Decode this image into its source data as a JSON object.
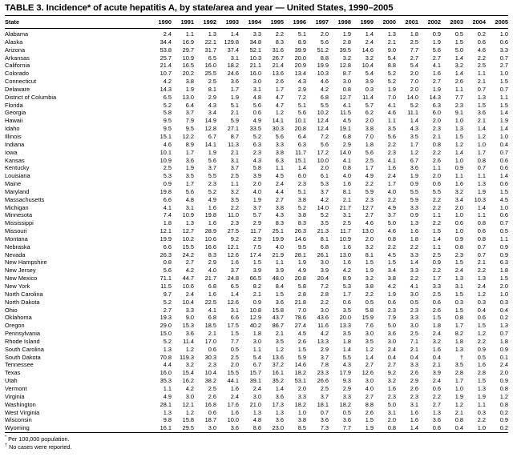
{
  "title": "TABLE 3. Incidence* of acute hepatitis A, by state/area and year — United States, 1990–2005",
  "table": {
    "columns": [
      "State",
      "1990",
      "1991",
      "1992",
      "1993",
      "1994",
      "1995",
      "1996",
      "1997",
      "1998",
      "1999",
      "2000",
      "2001",
      "2002",
      "2003",
      "2004",
      "2005"
    ],
    "rows": [
      {
        "state": "Alabama",
        "values": [
          "2.4",
          "1.1",
          "1.3",
          "1.4",
          "3.3",
          "2.2",
          "5.1",
          "2.0",
          "1.9",
          "1.4",
          "1.3",
          "1.8",
          "0.9",
          "0.5",
          "0.2",
          "1.0"
        ]
      },
      {
        "state": "Alaska",
        "values": [
          "34.4",
          "16.9",
          "22.1",
          "129.8",
          "34.8",
          "8.3",
          "8.9",
          "5.6",
          "2.8",
          "2.4",
          "2.1",
          "2.5",
          "1.9",
          "1.5",
          "0.6",
          "0.6"
        ]
      },
      {
        "state": "Arizona",
        "values": [
          "53.8",
          "29.7",
          "31.7",
          "37.4",
          "52.1",
          "31.6",
          "39.9",
          "51.2",
          "39.5",
          "14.6",
          "9.0",
          "7.7",
          "5.6",
          "5.0",
          "4.6",
          "3.3"
        ]
      },
      {
        "state": "Arkansas",
        "values": [
          "25.7",
          "10.9",
          "6.5",
          "3.1",
          "10.3",
          "26.7",
          "20.0",
          "8.8",
          "3.2",
          "3.2",
          "5.4",
          "2.7",
          "2.7",
          "1.4",
          "2.2",
          "0.7"
        ]
      },
      {
        "state": "California",
        "values": [
          "21.4",
          "16.5",
          "16.0",
          "18.2",
          "21.1",
          "21.4",
          "20.9",
          "19.9",
          "12.8",
          "10.4",
          "8.8",
          "5.4",
          "4.1",
          "3.2",
          "2.5",
          "2.7"
        ]
      },
      {
        "state": "Colorado",
        "values": [
          "10.7",
          "20.2",
          "25.5",
          "24.6",
          "16.0",
          "13.6",
          "13.4",
          "10.3",
          "8.7",
          "5.4",
          "5.2",
          "2.0",
          "1.6",
          "1.4",
          "1.1",
          "1.0"
        ]
      },
      {
        "state": "Connecticut",
        "values": [
          "4.2",
          "3.8",
          "2.5",
          "3.6",
          "3.0",
          "2.6",
          "4.3",
          "4.6",
          "3.0",
          "3.9",
          "5.2",
          "7.0",
          "2.7",
          "2.6",
          "2.1",
          "1.5"
        ]
      },
      {
        "state": "Delaware",
        "values": [
          "14.3",
          "1.9",
          "8.1",
          "1.7",
          "3.1",
          "1.7",
          "2.9",
          "4.2",
          "0.8",
          "0.3",
          "1.9",
          "2.0",
          "1.9",
          "1.1",
          "0.7",
          "0.7"
        ]
      },
      {
        "state": "District of Columbia",
        "values": [
          "6.5",
          "13.0",
          "2.9",
          "1.9",
          "4.8",
          "4.7",
          "7.2",
          "6.8",
          "12.7",
          "11.4",
          "7.0",
          "14.0",
          "14.3",
          "7.7",
          "1.3",
          "1.1"
        ]
      },
      {
        "state": "Florida",
        "values": [
          "5.2",
          "6.4",
          "4.3",
          "5.1",
          "5.6",
          "4.7",
          "5.1",
          "5.5",
          "4.1",
          "5.7",
          "4.1",
          "5.2",
          "6.3",
          "2.3",
          "1.5",
          "1.5"
        ]
      },
      {
        "state": "Georgia",
        "values": [
          "5.8",
          "3.7",
          "3.4",
          "2.1",
          "0.6",
          "1.2",
          "5.6",
          "10.2",
          "11.5",
          "6.2",
          "4.6",
          "11.1",
          "6.0",
          "9.1",
          "3.6",
          "1.4"
        ]
      },
      {
        "state": "Hawaii",
        "values": [
          "9.5",
          "7.9",
          "14.9",
          "5.9",
          "4.9",
          "14.1",
          "10.1",
          "12.4",
          "4.5",
          "2.0",
          "1.1",
          "1.4",
          "2.0",
          "1.0",
          "2.1",
          "1.9"
        ]
      },
      {
        "state": "Idaho",
        "values": [
          "9.5",
          "9.5",
          "12.8",
          "27.1",
          "33.5",
          "30.3",
          "20.8",
          "12.4",
          "19.1",
          "3.8",
          "3.5",
          "4.3",
          "2.3",
          "1.3",
          "1.4",
          "1.4"
        ]
      },
      {
        "state": "Illinois",
        "values": [
          "15.1",
          "12.2",
          "6.7",
          "8.7",
          "5.2",
          "5.6",
          "6.4",
          "7.2",
          "6.8",
          "7.0",
          "5.6",
          "3.5",
          "2.1",
          "1.5",
          "1.2",
          "1.0"
        ]
      },
      {
        "state": "Indiana",
        "values": [
          "4.6",
          "8.9",
          "14.1",
          "11.3",
          "6.3",
          "3.3",
          "6.3",
          "5.6",
          "2.9",
          "1.8",
          "2.2",
          "1.7",
          "0.8",
          "1.2",
          "1.0",
          "0.4"
        ]
      },
      {
        "state": "Iowa",
        "values": [
          "10.1",
          "1.7",
          "1.9",
          "2.1",
          "2.3",
          "3.8",
          "11.7",
          "17.2",
          "14.0",
          "5.6",
          "2.3",
          "1.2",
          "2.2",
          "1.4",
          "1.7",
          "0.7"
        ]
      },
      {
        "state": "Kansas",
        "values": [
          "10.9",
          "3.6",
          "5.6",
          "3.1",
          "4.3",
          "6.3",
          "15.1",
          "10.0",
          "4.1",
          "2.5",
          "4.1",
          "6.7",
          "2.6",
          "1.0",
          "0.8",
          "0.6"
        ]
      },
      {
        "state": "Kentucky",
        "values": [
          "2.5",
          "1.9",
          "3.7",
          "3.7",
          "5.8",
          "1.1",
          "1.4",
          "2.0",
          "0.8",
          "1.7",
          "1.6",
          "3.6",
          "1.1",
          "0.9",
          "0.7",
          "0.6"
        ]
      },
      {
        "state": "Louisiana",
        "values": [
          "5.3",
          "3.5",
          "5.5",
          "2.5",
          "3.9",
          "4.5",
          "6.0",
          "6.1",
          "4.0",
          "4.9",
          "2.4",
          "1.9",
          "2.0",
          "1.1",
          "1.1",
          "1.4"
        ]
      },
      {
        "state": "Maine",
        "values": [
          "0.9",
          "1.7",
          "2.3",
          "1.1",
          "2.0",
          "2.4",
          "2.3",
          "5.3",
          "1.6",
          "2.2",
          "1.7",
          "0.9",
          "0.6",
          "1.6",
          "1.3",
          "0.6"
        ]
      },
      {
        "state": "Maryland",
        "values": [
          "19.8",
          "5.6",
          "5.2",
          "3.2",
          "4.0",
          "4.4",
          "5.1",
          "3.7",
          "8.1",
          "5.9",
          "4.0",
          "5.5",
          "5.5",
          "3.2",
          "1.9",
          "1.5"
        ]
      },
      {
        "state": "Massachusetts",
        "values": [
          "6.6",
          "4.8",
          "4.9",
          "3.5",
          "1.9",
          "2.7",
          "3.8",
          "4.2",
          "2.1",
          "2.3",
          "2.2",
          "5.9",
          "2.2",
          "3.4",
          "10.3",
          "4.5"
        ]
      },
      {
        "state": "Michigan",
        "values": [
          "4.1",
          "3.1",
          "1.6",
          "2.2",
          "3.7",
          "3.8",
          "5.2",
          "14.0",
          "21.7",
          "12.7",
          "4.9",
          "3.3",
          "2.2",
          "2.0",
          "1.4",
          "1.0"
        ]
      },
      {
        "state": "Minnesota",
        "values": [
          "7.4",
          "10.9",
          "19.8",
          "11.0",
          "5.7",
          "4.3",
          "3.8",
          "5.2",
          "3.1",
          "2.7",
          "3.7",
          "0.9",
          "1.1",
          "1.0",
          "1.1",
          "0.6"
        ]
      },
      {
        "state": "Mississippi",
        "values": [
          "1.8",
          "1.3",
          "1.6",
          "2.3",
          "2.9",
          "8.3",
          "8.3",
          "3.5",
          "2.5",
          "4.6",
          "5.0",
          "1.3",
          "2.2",
          "0.6",
          "0.8",
          "0.7"
        ]
      },
      {
        "state": "Missouri",
        "values": [
          "12.1",
          "12.7",
          "28.9",
          "27.5",
          "11.7",
          "25.1",
          "26.3",
          "21.3",
          "11.7",
          "13.0",
          "4.6",
          "1.6",
          "1.5",
          "1.0",
          "0.6",
          "0.5"
        ]
      },
      {
        "state": "Montana",
        "values": [
          "19.9",
          "10.2",
          "10.6",
          "9.2",
          "2.9",
          "19.9",
          "14.6",
          "8.1",
          "10.9",
          "2.0",
          "0.8",
          "1.8",
          "1.4",
          "0.9",
          "0.8",
          "1.1"
        ]
      },
      {
        "state": "Nebraska",
        "values": [
          "6.6",
          "15.5",
          "16.6",
          "12.1",
          "7.5",
          "4.0",
          "9.5",
          "6.8",
          "1.6",
          "3.2",
          "2.2",
          "2.2",
          "1.1",
          "0.8",
          "0.7",
          "0.9"
        ]
      },
      {
        "state": "Nevada",
        "values": [
          "26.3",
          "24.2",
          "8.3",
          "12.6",
          "17.4",
          "21.9",
          "28.1",
          "26.1",
          "13.0",
          "8.1",
          "4.5",
          "3.3",
          "2.5",
          "2.3",
          "0.7",
          "0.9"
        ]
      },
      {
        "state": "New Hampshire",
        "values": [
          "0.8",
          "2.7",
          "2.9",
          "1.6",
          "1.5",
          "1.1",
          "1.9",
          "3.0",
          "1.6",
          "1.5",
          "1.5",
          "1.4",
          "0.9",
          "1.5",
          "2.1",
          "6.3"
        ]
      },
      {
        "state": "New Jersey",
        "values": [
          "5.6",
          "4.2",
          "4.0",
          "3.7",
          "3.9",
          "3.9",
          "4.9",
          "3.9",
          "4.2",
          "1.9",
          "3.4",
          "3.3",
          "2.2",
          "2.4",
          "2.2",
          "1.8"
        ]
      },
      {
        "state": "New Mexico",
        "values": [
          "71.1",
          "44.7",
          "21.7",
          "24.8",
          "66.5",
          "48.0",
          "20.8",
          "20.4",
          "8.9",
          "3.2",
          "3.8",
          "2.2",
          "1.7",
          "1.3",
          "1.3",
          "1.5"
        ]
      },
      {
        "state": "New York",
        "values": [
          "11.5",
          "10.6",
          "6.8",
          "6.5",
          "8.2",
          "8.4",
          "5.8",
          "7.2",
          "5.3",
          "3.8",
          "4.2",
          "4.1",
          "3.3",
          "3.1",
          "2.4",
          "2.0"
        ]
      },
      {
        "state": "North Carolina",
        "values": [
          "9.7",
          "2.4",
          "1.6",
          "1.4",
          "2.1",
          "1.5",
          "2.8",
          "2.8",
          "1.7",
          "2.2",
          "1.9",
          "3.0",
          "2.5",
          "1.5",
          "1.2",
          "1.0"
        ]
      },
      {
        "state": "North Dakota",
        "values": [
          "5.2",
          "10.4",
          "22.5",
          "12.6",
          "0.9",
          "3.6",
          "21.8",
          "2.2",
          "0.6",
          "0.5",
          "0.6",
          "0.5",
          "0.6",
          "0.3",
          "0.3",
          "0.3"
        ]
      },
      {
        "state": "Ohio",
        "values": [
          "2.7",
          "3.3",
          "4.1",
          "3.1",
          "10.8",
          "15.8",
          "7.0",
          "3.0",
          "3.5",
          "5.8",
          "2.3",
          "2.3",
          "2.6",
          "1.5",
          "0.4",
          "0.4"
        ]
      },
      {
        "state": "Oklahoma",
        "values": [
          "19.3",
          "9.0",
          "6.8",
          "6.6",
          "12.9",
          "43.7",
          "78.6",
          "43.6",
          "20.0",
          "15.9",
          "7.9",
          "3.3",
          "1.5",
          "0.8",
          "0.6",
          "0.2"
        ]
      },
      {
        "state": "Oregon",
        "values": [
          "29.0",
          "15.3",
          "18.5",
          "17.5",
          "40.2",
          "86.7",
          "27.4",
          "11.6",
          "13.3",
          "7.6",
          "5.0",
          "3.0",
          "1.8",
          "1.7",
          "1.5",
          "1.3"
        ]
      },
      {
        "state": "Pennsylvania",
        "values": [
          "15.0",
          "3.6",
          "2.1",
          "1.5",
          "1.8",
          "2.1",
          "4.5",
          "4.2",
          "3.5",
          "3.0",
          "3.6",
          "2.5",
          "2.4",
          "8.2",
          "1.2",
          "0.7"
        ]
      },
      {
        "state": "Rhode Island",
        "values": [
          "5.2",
          "11.4",
          "17.0",
          "7.7",
          "3.0",
          "3.5",
          "2.6",
          "13.3",
          "1.8",
          "3.5",
          "3.0",
          "7.1",
          "3.2",
          "1.8",
          "2.2",
          "1.8"
        ]
      },
      {
        "state": "South Carolina",
        "values": [
          "1.3",
          "1.2",
          "0.6",
          "0.5",
          "1.1",
          "1.2",
          "1.5",
          "2.9",
          "1.4",
          "1.2",
          "2.4",
          "2.1",
          "1.6",
          "1.3",
          "0.9",
          "0.9"
        ]
      },
      {
        "state": "South Dakota",
        "values": [
          "70.8",
          "119.3",
          "30.3",
          "2.5",
          "5.4",
          "13.6",
          "5.9",
          "3.7",
          "5.5",
          "1.4",
          "0.4",
          "0.4",
          "0.4",
          "†",
          "0.5",
          "0.1"
        ]
      },
      {
        "state": "Tennessee",
        "values": [
          "4.4",
          "3.2",
          "2.3",
          "2.0",
          "6.7",
          "37.2",
          "14.6",
          "7.8",
          "4.3",
          "2.7",
          "2.7",
          "3.3",
          "2.1",
          "3.5",
          "1.6",
          "2.4"
        ]
      },
      {
        "state": "Texas",
        "values": [
          "16.0",
          "15.4",
          "10.4",
          "15.5",
          "15.7",
          "16.1",
          "18.2",
          "23.3",
          "17.9",
          "12.6",
          "9.2",
          "2.6",
          "3.9",
          "2.8",
          "2.8",
          "2.0"
        ]
      },
      {
        "state": "Utah",
        "values": [
          "35.3",
          "16.2",
          "38.2",
          "44.1",
          "39.1",
          "35.2",
          "53.1",
          "26.6",
          "9.3",
          "3.0",
          "3.2",
          "2.9",
          "2.4",
          "1.7",
          "1.5",
          "0.9"
        ]
      },
      {
        "state": "Vermont",
        "values": [
          "1.1",
          "4.2",
          "2.5",
          "1.6",
          "2.4",
          "1.4",
          "2.0",
          "2.5",
          "2.9",
          "4.0",
          "1.6",
          "2.6",
          "0.6",
          "1.0",
          "1.3",
          "0.8"
        ]
      },
      {
        "state": "Virginia",
        "values": [
          "4.9",
          "3.0",
          "2.6",
          "2.4",
          "3.0",
          "3.6",
          "3.3",
          "3.7",
          "3.3",
          "2.7",
          "2.3",
          "2.3",
          "2.2",
          "1.9",
          "1.9",
          "1.2"
        ]
      },
      {
        "state": "Washington",
        "values": [
          "28.1",
          "12.1",
          "16.8",
          "17.6",
          "21.0",
          "17.3",
          "18.2",
          "18.1",
          "18.2",
          "8.8",
          "5.0",
          "3.1",
          "2.7",
          "1.2",
          "1.1",
          "0.8"
        ]
      },
      {
        "state": "West Virginia",
        "values": [
          "1.3",
          "1.2",
          "0.6",
          "1.6",
          "1.3",
          "1.3",
          "1.0",
          "0.7",
          "0.5",
          "2.6",
          "3.1",
          "1.6",
          "1.3",
          "2.1",
          "0.3",
          "0.2"
        ]
      },
      {
        "state": "Wisconsin",
        "values": [
          "9.8",
          "15.8",
          "18.7",
          "10.0",
          "4.8",
          "3.6",
          "3.8",
          "3.6",
          "3.6",
          "1.5",
          "2.0",
          "1.6",
          "3.6",
          "0.8",
          "2.2",
          "0.9"
        ]
      },
      {
        "state": "Wyoming",
        "values": [
          "16.1",
          "29.5",
          "3.0",
          "3.6",
          "8.6",
          "23.0",
          "8.5",
          "7.3",
          "7.7",
          "1.9",
          "0.8",
          "1.4",
          "0.6",
          "0.4",
          "1.0",
          "0.2"
        ]
      }
    ]
  },
  "footnotes": [
    {
      "marker": "*",
      "text": "Per 100,000 population."
    },
    {
      "marker": "†",
      "text": "No cases were reported."
    }
  ]
}
